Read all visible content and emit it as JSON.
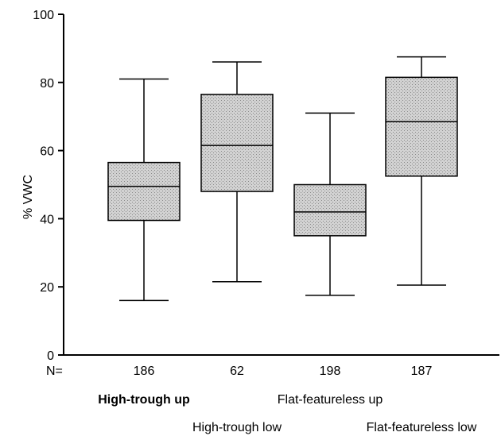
{
  "chart_data": {
    "type": "box",
    "ylabel": "% VWC",
    "ylim": [
      0,
      100
    ],
    "yticks": [
      "0",
      "20",
      "40",
      "60",
      "80",
      "100"
    ],
    "n_prefix": "N=",
    "categories": [
      {
        "label": "High-trough up",
        "n": "186",
        "min": 16,
        "q1": 39.5,
        "median": 49.5,
        "q3": 56.5,
        "max": 81
      },
      {
        "label": "High-trough low",
        "n": "62",
        "min": 21.5,
        "q1": 48,
        "median": 61.5,
        "q3": 76.5,
        "max": 86
      },
      {
        "label": "Flat-featureless up",
        "n": "198",
        "min": 17.5,
        "q1": 35,
        "median": 42,
        "q3": 50,
        "max": 71
      },
      {
        "label": "Flat-featureless low",
        "n": "187",
        "min": 20.5,
        "q1": 52.5,
        "median": 68.5,
        "q3": 81.5,
        "max": 87.5
      }
    ],
    "box_fill": "#c8c8c8",
    "grid": false
  }
}
